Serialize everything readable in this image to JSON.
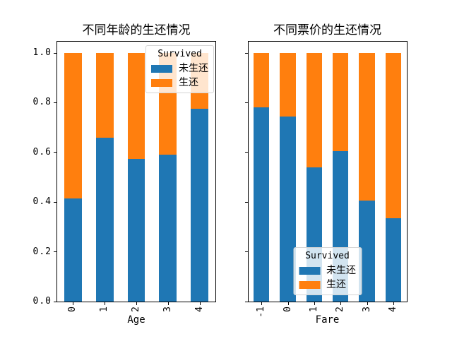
{
  "figure": {
    "background": "#ffffff",
    "spine_color": "#000000",
    "legend_border_color": "#d5d5d5"
  },
  "chart_data": [
    {
      "type": "bar",
      "stacked": true,
      "normalized": true,
      "title": "不同年龄的生还情况",
      "xlabel": "Age",
      "ylabel": "",
      "ylim": [
        0,
        1.05
      ],
      "grid": false,
      "yticks": [
        0.0,
        0.2,
        0.4,
        0.6,
        0.8,
        1.0
      ],
      "ytick_labels": [
        "0.0",
        "0.2",
        "0.4",
        "0.6",
        "0.8",
        "1.0"
      ],
      "show_ytick_labels": true,
      "categories": [
        "0",
        "1",
        "2",
        "3",
        "4"
      ],
      "series": [
        {
          "name": "未生还",
          "key": "not-survived",
          "color": "#1f77b4",
          "values": [
            0.415,
            0.66,
            0.575,
            0.59,
            0.775
          ]
        },
        {
          "name": "生还",
          "key": "survived",
          "color": "#ff7f0e",
          "values": [
            0.585,
            0.34,
            0.425,
            0.41,
            0.225
          ]
        }
      ],
      "bar_width_fraction": 0.55,
      "legend": {
        "title": "Survived",
        "loc": "upper right"
      }
    },
    {
      "type": "bar",
      "stacked": true,
      "normalized": true,
      "title": "不同票价的生还情况",
      "xlabel": "Fare",
      "ylabel": "",
      "ylim": [
        0,
        1.05
      ],
      "grid": false,
      "yticks": [
        0.0,
        0.2,
        0.4,
        0.6,
        0.8,
        1.0
      ],
      "ytick_labels": [
        "0.0",
        "0.2",
        "0.4",
        "0.6",
        "0.8",
        "1.0"
      ],
      "show_ytick_labels": false,
      "categories": [
        "-1",
        "0",
        "1",
        "2",
        "3",
        "4"
      ],
      "series": [
        {
          "name": "未生还",
          "key": "not-survived",
          "color": "#1f77b4",
          "values": [
            0.78,
            0.745,
            0.54,
            0.605,
            0.405,
            0.335
          ]
        },
        {
          "name": "生还",
          "key": "survived",
          "color": "#ff7f0e",
          "values": [
            0.22,
            0.255,
            0.46,
            0.395,
            0.595,
            0.665
          ]
        }
      ],
      "bar_width_fraction": 0.6,
      "legend": {
        "title": "Survived",
        "loc": "lower center"
      }
    }
  ]
}
